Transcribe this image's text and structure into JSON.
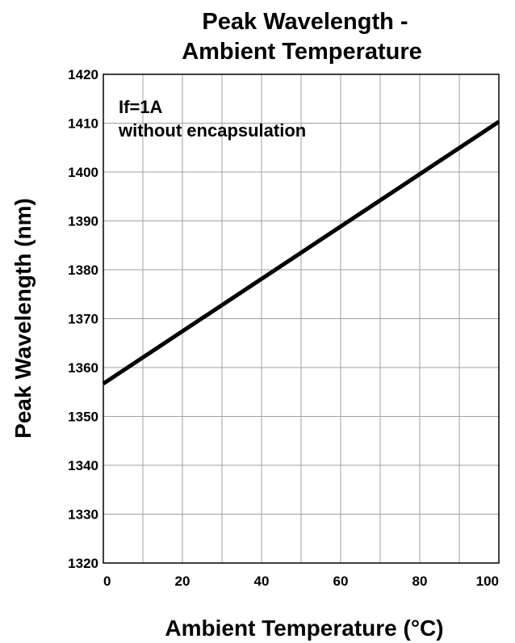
{
  "chart_data": {
    "type": "line",
    "title": [
      "Peak Wavelength -",
      "Ambient Temperature"
    ],
    "xlabel": "Ambient Temperature (°C)",
    "ylabel": "Peak Wavelength (nm)",
    "xlim": [
      0,
      100
    ],
    "ylim": [
      1320,
      1420
    ],
    "x_ticks": [
      0,
      20,
      40,
      60,
      80,
      100
    ],
    "y_ticks": [
      1320,
      1330,
      1340,
      1350,
      1360,
      1370,
      1380,
      1390,
      1400,
      1410,
      1420
    ],
    "x_grid_step": 10,
    "grid": true,
    "annotations": [
      "If=1A",
      "without encapsulation"
    ],
    "series": [
      {
        "x": [
          0,
          100
        ],
        "y": [
          1356.7,
          1410.3
        ],
        "color": "#000000"
      }
    ]
  }
}
